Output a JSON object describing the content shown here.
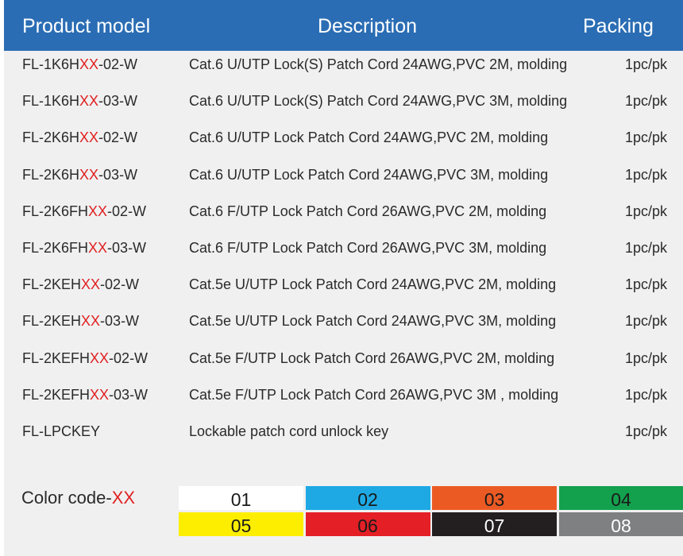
{
  "header": {
    "product_model": "Product model",
    "description": "Description",
    "packing": "Packing"
  },
  "rows": [
    {
      "model_pre": "FL-1K6H",
      "model_xx": "XX",
      "model_post": "-02-W",
      "description": "Cat.6 U/UTP Lock(S) Patch Cord 24AWG,PVC 2M, molding",
      "packing": "1pc/pk"
    },
    {
      "model_pre": "FL-1K6H",
      "model_xx": "XX",
      "model_post": "-03-W",
      "description": "Cat.6 U/UTP Lock(S) Patch Cord 24AWG,PVC 3M, molding",
      "packing": "1pc/pk"
    },
    {
      "model_pre": "FL-2K6H",
      "model_xx": "XX",
      "model_post": "-02-W",
      "description": "Cat.6 U/UTP Lock  Patch Cord 24AWG,PVC 2M, molding",
      "packing": "1pc/pk"
    },
    {
      "model_pre": "FL-2K6H",
      "model_xx": "XX",
      "model_post": "-03-W",
      "description": "Cat.6 U/UTP Lock Patch Cord 24AWG,PVC 3M, molding",
      "packing": "1pc/pk"
    },
    {
      "model_pre": "FL-2K6FH",
      "model_xx": "XX",
      "model_post": "-02-W",
      "description": "Cat.6 F/UTP Lock Patch Cord 26AWG,PVC 2M, molding",
      "packing": "1pc/pk"
    },
    {
      "model_pre": "FL-2K6FH",
      "model_xx": "XX",
      "model_post": "-03-W",
      "description": "Cat.6 F/UTP Lock Patch Cord 26AWG,PVC 3M, molding",
      "packing": "1pc/pk"
    },
    {
      "model_pre": "FL-2KEH",
      "model_xx": "XX",
      "model_post": "-02-W",
      "description": "Cat.5e U/UTP Lock Patch Cord 24AWG,PVC 2M, molding",
      "packing": "1pc/pk"
    },
    {
      "model_pre": "FL-2KEH",
      "model_xx": "XX",
      "model_post": "-03-W",
      "description": "Cat.5e U/UTP Lock Patch Cord 24AWG,PVC 3M, molding",
      "packing": "1pc/pk"
    },
    {
      "model_pre": "FL-2KEFH",
      "model_xx": "XX",
      "model_post": "-02-W",
      "description": "Cat.5e F/UTP Lock Patch Cord 26AWG,PVC 2M, molding",
      "packing": "1pc/pk"
    },
    {
      "model_pre": "FL-2KEFH",
      "model_xx": "XX",
      "model_post": "-03-W",
      "description": "Cat.5e F/UTP Lock Patch Cord 26AWG,PVC 3M , molding",
      "packing": "1pc/pk"
    },
    {
      "model_pre": "FL-LPCKEY",
      "model_xx": "",
      "model_post": "",
      "description": "Lockable patch cord unlock key",
      "packing": "1pc/pk"
    }
  ],
  "color_code": {
    "label": "Color code-",
    "xx": "XX",
    "swatches": [
      {
        "code": "01",
        "color": "#ffffff",
        "text_color": "#1a1a1a"
      },
      {
        "code": "02",
        "color": "#1ea9e5",
        "text_color": "#1a1a1a"
      },
      {
        "code": "03",
        "color": "#ec5a24",
        "text_color": "#1a1a1a"
      },
      {
        "code": "04",
        "color": "#13a14e",
        "text_color": "#1a1a1a"
      },
      {
        "code": "05",
        "color": "#fdee00",
        "text_color": "#1a1a1a"
      },
      {
        "code": "06",
        "color": "#e41f26",
        "text_color": "#1a1a1a"
      },
      {
        "code": "07",
        "color": "#231f20",
        "text_color": "#ffffff"
      },
      {
        "code": "08",
        "color": "#7f8082",
        "text_color": "#ffffff"
      }
    ]
  },
  "colors": {
    "header_bg": "#2a6db4",
    "panel_bg": "#f0f0f1",
    "accent_red": "#e02020"
  }
}
